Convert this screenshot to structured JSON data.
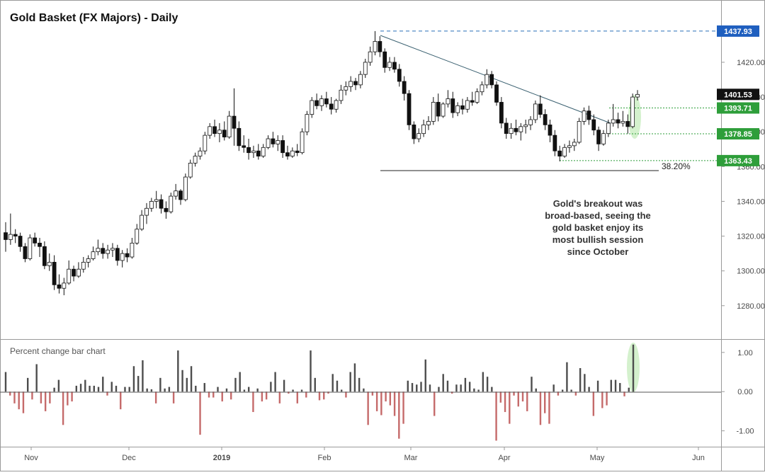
{
  "colors": {
    "bull_candle": "#ffffff",
    "bear_candle": "#111111",
    "positive_bar": "#4d4d4d",
    "negative_bar": "#c56a6a",
    "trendline": "#3a6070",
    "resistance_dashed": "#2a6fb6",
    "support_dotted": "#2e9e3a",
    "highlight_fill": "#cdeec4",
    "label_blue": "#1f5fbf",
    "label_green": "#2e9e3a",
    "label_black": "#111111"
  },
  "chart_data": [
    {
      "type": "candlestick",
      "title": "Gold Basket (FX Majors) - Daily",
      "x_tick_labels": [
        "Nov",
        "Dec",
        "2019",
        "Feb",
        "Mar",
        "Apr",
        "May",
        "Jun"
      ],
      "y_tick_labels": [
        "1280.00",
        "1300.00",
        "1320.00",
        "1340.00",
        "1360.00",
        "1380.00",
        "1400.00",
        "1420.00"
      ],
      "ylim": [
        1262,
        1455
      ],
      "grid": false,
      "levels": [
        {
          "value": 1437.93,
          "label": "1437.93",
          "style": "dashed",
          "color": "blue"
        },
        {
          "value": 1401.53,
          "label": "1401.53",
          "style": "none",
          "color": "black"
        },
        {
          "value": 1393.71,
          "label": "1393.71",
          "style": "dotted",
          "color": "green"
        },
        {
          "value": 1378.85,
          "label": "1378.85",
          "style": "dotted",
          "color": "green"
        },
        {
          "value": 1363.43,
          "label": "1363.43",
          "style": "dotted",
          "color": "green"
        }
      ],
      "fib_label": "38.20%",
      "annotation": [
        "Gold's breakout was",
        "broad-based, seeing the",
        "gold basket enjoy its",
        "most bullish session",
        "since October"
      ],
      "candles": [
        {
          "o": 1322,
          "h": 1328,
          "l": 1311,
          "c": 1318
        },
        {
          "o": 1318,
          "h": 1333,
          "l": 1315,
          "c": 1321
        },
        {
          "o": 1321,
          "h": 1324,
          "l": 1316,
          "c": 1320
        },
        {
          "o": 1320,
          "h": 1322,
          "l": 1311,
          "c": 1314
        },
        {
          "o": 1314,
          "h": 1316,
          "l": 1305,
          "c": 1307
        },
        {
          "o": 1307,
          "h": 1321,
          "l": 1306,
          "c": 1319
        },
        {
          "o": 1319,
          "h": 1322,
          "l": 1314,
          "c": 1316
        },
        {
          "o": 1316,
          "h": 1319,
          "l": 1308,
          "c": 1314
        },
        {
          "o": 1314,
          "h": 1317,
          "l": 1301,
          "c": 1303
        },
        {
          "o": 1303,
          "h": 1310,
          "l": 1300,
          "c": 1305
        },
        {
          "o": 1305,
          "h": 1309,
          "l": 1289,
          "c": 1292
        },
        {
          "o": 1292,
          "h": 1298,
          "l": 1287,
          "c": 1290
        },
        {
          "o": 1290,
          "h": 1296,
          "l": 1286,
          "c": 1293
        },
        {
          "o": 1293,
          "h": 1306,
          "l": 1292,
          "c": 1301
        },
        {
          "o": 1301,
          "h": 1303,
          "l": 1294,
          "c": 1297
        },
        {
          "o": 1297,
          "h": 1305,
          "l": 1296,
          "c": 1301
        },
        {
          "o": 1301,
          "h": 1308,
          "l": 1299,
          "c": 1305
        },
        {
          "o": 1305,
          "h": 1309,
          "l": 1302,
          "c": 1307
        },
        {
          "o": 1307,
          "h": 1314,
          "l": 1306,
          "c": 1311
        },
        {
          "o": 1311,
          "h": 1318,
          "l": 1309,
          "c": 1313
        },
        {
          "o": 1313,
          "h": 1316,
          "l": 1307,
          "c": 1310
        },
        {
          "o": 1310,
          "h": 1315,
          "l": 1307,
          "c": 1312
        },
        {
          "o": 1312,
          "h": 1316,
          "l": 1308,
          "c": 1313
        },
        {
          "o": 1313,
          "h": 1315,
          "l": 1303,
          "c": 1306
        },
        {
          "o": 1306,
          "h": 1312,
          "l": 1302,
          "c": 1310
        },
        {
          "o": 1310,
          "h": 1313,
          "l": 1305,
          "c": 1308
        },
        {
          "o": 1308,
          "h": 1319,
          "l": 1307,
          "c": 1316
        },
        {
          "o": 1316,
          "h": 1327,
          "l": 1315,
          "c": 1324
        },
        {
          "o": 1324,
          "h": 1335,
          "l": 1323,
          "c": 1332
        },
        {
          "o": 1332,
          "h": 1339,
          "l": 1327,
          "c": 1336
        },
        {
          "o": 1336,
          "h": 1342,
          "l": 1334,
          "c": 1340
        },
        {
          "o": 1340,
          "h": 1346,
          "l": 1336,
          "c": 1341
        },
        {
          "o": 1341,
          "h": 1344,
          "l": 1333,
          "c": 1336
        },
        {
          "o": 1336,
          "h": 1340,
          "l": 1330,
          "c": 1334
        },
        {
          "o": 1334,
          "h": 1345,
          "l": 1333,
          "c": 1343
        },
        {
          "o": 1343,
          "h": 1350,
          "l": 1341,
          "c": 1346
        },
        {
          "o": 1346,
          "h": 1347,
          "l": 1338,
          "c": 1341
        },
        {
          "o": 1341,
          "h": 1356,
          "l": 1340,
          "c": 1354
        },
        {
          "o": 1354,
          "h": 1364,
          "l": 1353,
          "c": 1362
        },
        {
          "o": 1362,
          "h": 1368,
          "l": 1360,
          "c": 1366
        },
        {
          "o": 1366,
          "h": 1371,
          "l": 1364,
          "c": 1369
        },
        {
          "o": 1369,
          "h": 1380,
          "l": 1367,
          "c": 1378
        },
        {
          "o": 1378,
          "h": 1385,
          "l": 1376,
          "c": 1383
        },
        {
          "o": 1383,
          "h": 1387,
          "l": 1377,
          "c": 1379
        },
        {
          "o": 1379,
          "h": 1385,
          "l": 1374,
          "c": 1381
        },
        {
          "o": 1381,
          "h": 1386,
          "l": 1375,
          "c": 1377
        },
        {
          "o": 1377,
          "h": 1392,
          "l": 1376,
          "c": 1389
        },
        {
          "o": 1389,
          "h": 1405,
          "l": 1372,
          "c": 1382
        },
        {
          "o": 1382,
          "h": 1386,
          "l": 1369,
          "c": 1372
        },
        {
          "o": 1372,
          "h": 1378,
          "l": 1368,
          "c": 1371
        },
        {
          "o": 1371,
          "h": 1376,
          "l": 1364,
          "c": 1368
        },
        {
          "o": 1368,
          "h": 1372,
          "l": 1365,
          "c": 1369
        },
        {
          "o": 1369,
          "h": 1373,
          "l": 1364,
          "c": 1366
        },
        {
          "o": 1366,
          "h": 1373,
          "l": 1365,
          "c": 1371
        },
        {
          "o": 1371,
          "h": 1378,
          "l": 1370,
          "c": 1376
        },
        {
          "o": 1376,
          "h": 1380,
          "l": 1371,
          "c": 1373
        },
        {
          "o": 1373,
          "h": 1378,
          "l": 1369,
          "c": 1375
        },
        {
          "o": 1375,
          "h": 1378,
          "l": 1365,
          "c": 1368
        },
        {
          "o": 1368,
          "h": 1372,
          "l": 1364,
          "c": 1366
        },
        {
          "o": 1366,
          "h": 1371,
          "l": 1365,
          "c": 1369
        },
        {
          "o": 1369,
          "h": 1373,
          "l": 1366,
          "c": 1368
        },
        {
          "o": 1368,
          "h": 1382,
          "l": 1367,
          "c": 1380
        },
        {
          "o": 1380,
          "h": 1392,
          "l": 1378,
          "c": 1390
        },
        {
          "o": 1390,
          "h": 1400,
          "l": 1388,
          "c": 1398
        },
        {
          "o": 1398,
          "h": 1402,
          "l": 1393,
          "c": 1395
        },
        {
          "o": 1395,
          "h": 1401,
          "l": 1392,
          "c": 1399
        },
        {
          "o": 1399,
          "h": 1403,
          "l": 1394,
          "c": 1396
        },
        {
          "o": 1396,
          "h": 1400,
          "l": 1390,
          "c": 1393
        },
        {
          "o": 1393,
          "h": 1399,
          "l": 1391,
          "c": 1398
        },
        {
          "o": 1398,
          "h": 1407,
          "l": 1396,
          "c": 1404
        },
        {
          "o": 1404,
          "h": 1409,
          "l": 1401,
          "c": 1406
        },
        {
          "o": 1406,
          "h": 1412,
          "l": 1403,
          "c": 1409
        },
        {
          "o": 1409,
          "h": 1411,
          "l": 1404,
          "c": 1407
        },
        {
          "o": 1407,
          "h": 1415,
          "l": 1405,
          "c": 1413
        },
        {
          "o": 1413,
          "h": 1422,
          "l": 1411,
          "c": 1420
        },
        {
          "o": 1420,
          "h": 1429,
          "l": 1418,
          "c": 1426
        },
        {
          "o": 1426,
          "h": 1437.93,
          "l": 1424,
          "c": 1432
        },
        {
          "o": 1432,
          "h": 1435,
          "l": 1423,
          "c": 1426
        },
        {
          "o": 1426,
          "h": 1428,
          "l": 1414,
          "c": 1417
        },
        {
          "o": 1417,
          "h": 1423,
          "l": 1415,
          "c": 1420
        },
        {
          "o": 1420,
          "h": 1423,
          "l": 1414,
          "c": 1416
        },
        {
          "o": 1416,
          "h": 1419,
          "l": 1406,
          "c": 1409
        },
        {
          "o": 1409,
          "h": 1412,
          "l": 1398,
          "c": 1402
        },
        {
          "o": 1402,
          "h": 1404,
          "l": 1381,
          "c": 1384
        },
        {
          "o": 1384,
          "h": 1386,
          "l": 1373,
          "c": 1376
        },
        {
          "o": 1376,
          "h": 1382,
          "l": 1374,
          "c": 1379
        },
        {
          "o": 1379,
          "h": 1387,
          "l": 1377,
          "c": 1384
        },
        {
          "o": 1384,
          "h": 1389,
          "l": 1381,
          "c": 1386
        },
        {
          "o": 1386,
          "h": 1400,
          "l": 1384,
          "c": 1397
        },
        {
          "o": 1397,
          "h": 1402,
          "l": 1386,
          "c": 1389
        },
        {
          "o": 1389,
          "h": 1397,
          "l": 1388,
          "c": 1396
        },
        {
          "o": 1396,
          "h": 1404,
          "l": 1394,
          "c": 1399
        },
        {
          "o": 1399,
          "h": 1403,
          "l": 1388,
          "c": 1391
        },
        {
          "o": 1391,
          "h": 1397,
          "l": 1389,
          "c": 1395
        },
        {
          "o": 1395,
          "h": 1399,
          "l": 1390,
          "c": 1393
        },
        {
          "o": 1393,
          "h": 1400,
          "l": 1391,
          "c": 1398
        },
        {
          "o": 1398,
          "h": 1403,
          "l": 1395,
          "c": 1397
        },
        {
          "o": 1397,
          "h": 1405,
          "l": 1396,
          "c": 1403
        },
        {
          "o": 1403,
          "h": 1409,
          "l": 1401,
          "c": 1407
        },
        {
          "o": 1407,
          "h": 1416,
          "l": 1405,
          "c": 1413
        },
        {
          "o": 1413,
          "h": 1415,
          "l": 1405,
          "c": 1407
        },
        {
          "o": 1407,
          "h": 1409,
          "l": 1395,
          "c": 1397
        },
        {
          "o": 1397,
          "h": 1400,
          "l": 1382,
          "c": 1385
        },
        {
          "o": 1385,
          "h": 1388,
          "l": 1376,
          "c": 1379
        },
        {
          "o": 1379,
          "h": 1385,
          "l": 1376,
          "c": 1382
        },
        {
          "o": 1382,
          "h": 1387,
          "l": 1378,
          "c": 1380
        },
        {
          "o": 1380,
          "h": 1385,
          "l": 1375,
          "c": 1383
        },
        {
          "o": 1383,
          "h": 1387,
          "l": 1379,
          "c": 1384
        },
        {
          "o": 1384,
          "h": 1389,
          "l": 1381,
          "c": 1387
        },
        {
          "o": 1387,
          "h": 1398,
          "l": 1385,
          "c": 1396
        },
        {
          "o": 1396,
          "h": 1401,
          "l": 1388,
          "c": 1390
        },
        {
          "o": 1390,
          "h": 1393,
          "l": 1381,
          "c": 1384
        },
        {
          "o": 1384,
          "h": 1387,
          "l": 1374,
          "c": 1378
        },
        {
          "o": 1378,
          "h": 1381,
          "l": 1366,
          "c": 1369
        },
        {
          "o": 1369,
          "h": 1372,
          "l": 1363,
          "c": 1366
        },
        {
          "o": 1366,
          "h": 1373,
          "l": 1365,
          "c": 1371
        },
        {
          "o": 1371,
          "h": 1375,
          "l": 1368,
          "c": 1372
        },
        {
          "o": 1372,
          "h": 1376,
          "l": 1369,
          "c": 1374
        },
        {
          "o": 1374,
          "h": 1388,
          "l": 1373,
          "c": 1386
        },
        {
          "o": 1386,
          "h": 1394,
          "l": 1384,
          "c": 1392
        },
        {
          "o": 1392,
          "h": 1395,
          "l": 1384,
          "c": 1387
        },
        {
          "o": 1387,
          "h": 1390,
          "l": 1378,
          "c": 1381
        },
        {
          "o": 1381,
          "h": 1383,
          "l": 1369,
          "c": 1373
        },
        {
          "o": 1373,
          "h": 1381,
          "l": 1372,
          "c": 1379
        },
        {
          "o": 1379,
          "h": 1387,
          "l": 1377,
          "c": 1385
        },
        {
          "o": 1385,
          "h": 1396,
          "l": 1383,
          "c": 1387
        },
        {
          "o": 1387,
          "h": 1391,
          "l": 1382,
          "c": 1385
        },
        {
          "o": 1385,
          "h": 1392,
          "l": 1383,
          "c": 1386
        },
        {
          "o": 1386,
          "h": 1390,
          "l": 1379,
          "c": 1383
        },
        {
          "o": 1383,
          "h": 1402,
          "l": 1382,
          "c": 1400
        },
        {
          "o": 1400,
          "h": 1404,
          "l": 1398,
          "c": 1401.53
        }
      ]
    },
    {
      "type": "bar",
      "title": "Percent change bar chart",
      "x_tick_labels": [
        "Nov",
        "Dec",
        "2019",
        "Feb",
        "Mar",
        "Apr",
        "May",
        "Jun"
      ],
      "y_tick_labels": [
        "1.00",
        "0.00",
        "-1.00"
      ],
      "ylim": [
        -1.35,
        1.25
      ],
      "grid": false,
      "values": [
        0.5,
        -0.1,
        -0.3,
        -0.45,
        -0.55,
        0.35,
        -0.2,
        0.7,
        -0.3,
        -0.5,
        -0.3,
        0.1,
        0.3,
        -0.85,
        -0.35,
        -0.25,
        0.15,
        0.2,
        0.3,
        0.15,
        0.15,
        0.12,
        0.38,
        -0.1,
        0.25,
        0.15,
        -0.45,
        0.12,
        0.12,
        0.65,
        0.4,
        0.8,
        0.08,
        0.06,
        -0.3,
        0.35,
        0.08,
        0.12,
        -0.3,
        1.05,
        0.55,
        0.35,
        0.65,
        0.15,
        -1.1,
        0.22,
        -0.15,
        -0.15,
        0.12,
        -0.25,
        0.08,
        -0.2,
        0.35,
        0.5,
        0.05,
        0.12,
        -0.52,
        0.08,
        -0.25,
        -0.2,
        0.25,
        0.5,
        -0.3,
        0.3,
        -0.05,
        0.05,
        -0.3,
        0.05,
        -0.15,
        1.05,
        0.35,
        -0.22,
        -0.2,
        -0.05,
        0.45,
        0.28,
        0.05,
        -0.15,
        0.5,
        0.72,
        0.35,
        0.08,
        -0.85,
        -0.1,
        -0.5,
        -0.6,
        -0.25,
        -0.35,
        -0.62,
        -1.2,
        -0.82,
        0.28,
        0.22,
        0.18,
        0.25,
        0.82,
        0.18,
        -0.62,
        0.12,
        0.45,
        0.28,
        -0.05,
        0.18,
        0.18,
        0.35,
        0.25,
        0.08,
        0.05,
        0.5,
        0.38,
        0.12,
        -1.25,
        -0.28,
        -0.52,
        -0.82,
        -0.1,
        -0.38,
        -0.25,
        -0.5,
        0.38,
        0.08,
        -0.85,
        -0.55,
        -0.82,
        0.18,
        -0.1,
        0.05,
        0.75,
        0.05,
        -0.1,
        0.6,
        0.45,
        0.12,
        -0.62,
        0.28,
        -0.42,
        -0.35,
        0.3,
        0.3,
        0.22,
        -0.12,
        0.1,
        1.2
      ]
    }
  ]
}
